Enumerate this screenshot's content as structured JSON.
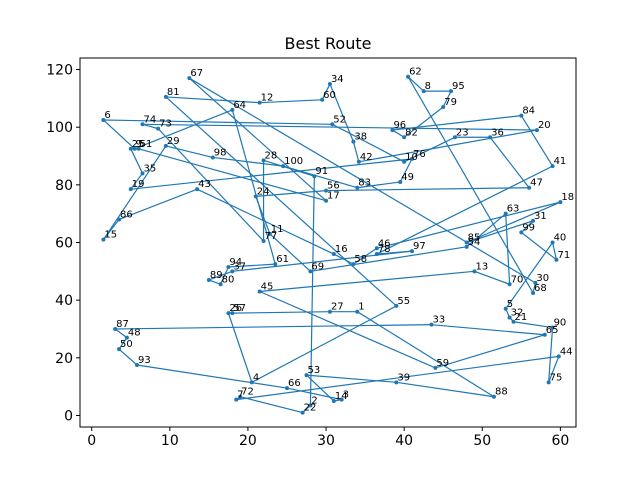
{
  "chart_data": {
    "type": "line",
    "title": "Best Route",
    "xlabel": "",
    "ylabel": "",
    "xlim": [
      -1.5,
      62
    ],
    "ylim": [
      -4,
      124
    ],
    "x_ticks": [
      0,
      10,
      20,
      30,
      40,
      50,
      60
    ],
    "y_ticks": [
      0,
      20,
      40,
      60,
      80,
      100,
      120
    ],
    "grid": false,
    "legend": "none",
    "colors": {
      "line": "#1f77b4"
    },
    "series": [
      {
        "points": [
          {
            "label": "6",
            "x": 1.5,
            "y": 102.5
          },
          {
            "label": "52",
            "x": 30.8,
            "y": 101
          },
          {
            "label": "10",
            "x": 40,
            "y": 88
          },
          {
            "label": "23",
            "x": 46.5,
            "y": 96.5
          },
          {
            "label": "36",
            "x": 51,
            "y": 96.5
          },
          {
            "label": "47",
            "x": 56,
            "y": 79
          },
          {
            "label": "56",
            "x": 30,
            "y": 78
          },
          {
            "label": "24",
            "x": 21,
            "y": 76
          },
          {
            "label": "11",
            "x": 22.8,
            "y": 63
          },
          {
            "label": "69",
            "x": 28,
            "y": 50
          },
          {
            "label": "54",
            "x": 48,
            "y": 58.5
          },
          {
            "label": "63",
            "x": 53,
            "y": 70
          },
          {
            "label": "70",
            "x": 53.5,
            "y": 45.5
          },
          {
            "label": "13",
            "x": 49,
            "y": 50
          },
          {
            "label": "45",
            "x": 21.5,
            "y": 43
          },
          {
            "label": "59",
            "x": 44,
            "y": 16.5
          },
          {
            "label": "65",
            "x": 58,
            "y": 28
          },
          {
            "label": "33",
            "x": 43.5,
            "y": 31.5
          },
          {
            "label": "87",
            "x": 3,
            "y": 30
          },
          {
            "label": "48",
            "x": 4.5,
            "y": 27
          },
          {
            "label": "50",
            "x": 3.5,
            "y": 23
          },
          {
            "label": "93",
            "x": 5.8,
            "y": 17.5
          },
          {
            "label": "66",
            "x": 25,
            "y": 9.5
          },
          {
            "label": "3",
            "x": 32,
            "y": 5.5
          },
          {
            "label": "14",
            "x": 31,
            "y": 5
          },
          {
            "label": "53",
            "x": 27.5,
            "y": 14
          },
          {
            "label": "39",
            "x": 39,
            "y": 11.5
          },
          {
            "label": "88",
            "x": 51.5,
            "y": 6.5
          },
          {
            "label": "1",
            "x": 34,
            "y": 36
          },
          {
            "label": "27",
            "x": 30.5,
            "y": 36
          },
          {
            "label": "57",
            "x": 18,
            "y": 35.5
          },
          {
            "label": "26",
            "x": 17.5,
            "y": 35.5
          },
          {
            "label": "4",
            "x": 20.5,
            "y": 11.5
          },
          {
            "label": "55",
            "x": 39,
            "y": 38
          },
          {
            "label": "81",
            "x": 9.5,
            "y": 110.5
          },
          {
            "label": "12",
            "x": 21.5,
            "y": 108.5
          },
          {
            "label": "60",
            "x": 29.5,
            "y": 109.5
          },
          {
            "label": "34",
            "x": 30.5,
            "y": 115
          },
          {
            "label": "38",
            "x": 33.5,
            "y": 95
          },
          {
            "label": "42",
            "x": 34.2,
            "y": 88
          },
          {
            "label": "20",
            "x": 57,
            "y": 99
          },
          {
            "label": "74",
            "x": 6.5,
            "y": 101
          },
          {
            "label": "73",
            "x": 8.5,
            "y": 99.5
          },
          {
            "label": "77",
            "x": 22,
            "y": 60.5
          },
          {
            "label": "28",
            "x": 22,
            "y": 88.5
          },
          {
            "label": "91",
            "x": 28.5,
            "y": 83
          },
          {
            "label": "2",
            "x": 28,
            "y": 3.5
          },
          {
            "label": "22",
            "x": 27,
            "y": 1
          },
          {
            "label": "72",
            "x": 19,
            "y": 6.5
          },
          {
            "label": "7",
            "x": 18.5,
            "y": 5.5
          },
          {
            "label": "44",
            "x": 59.8,
            "y": 20.5
          },
          {
            "label": "75",
            "x": 58.5,
            "y": 11.5
          },
          {
            "label": "90",
            "x": 59,
            "y": 30.5
          },
          {
            "label": "21",
            "x": 54,
            "y": 32.5
          },
          {
            "label": "32",
            "x": 53.5,
            "y": 34
          },
          {
            "label": "5",
            "x": 53,
            "y": 37
          },
          {
            "label": "40",
            "x": 59,
            "y": 60
          },
          {
            "label": "71",
            "x": 59.5,
            "y": 54
          },
          {
            "label": "99",
            "x": 55,
            "y": 63.5
          },
          {
            "label": "31",
            "x": 56.5,
            "y": 67.5
          },
          {
            "label": "85",
            "x": 48,
            "y": 60
          },
          {
            "label": "18",
            "x": 60,
            "y": 74
          },
          {
            "label": "46",
            "x": 36.5,
            "y": 58
          },
          {
            "label": "58",
            "x": 33.5,
            "y": 52.5
          },
          {
            "label": "16",
            "x": 31,
            "y": 56
          },
          {
            "label": "43",
            "x": 13.5,
            "y": 78.5
          },
          {
            "label": "86",
            "x": 3.5,
            "y": 68
          },
          {
            "label": "15",
            "x": 1.5,
            "y": 61
          },
          {
            "label": "29",
            "x": 9.5,
            "y": 93.5
          },
          {
            "label": "98",
            "x": 15.5,
            "y": 89.5
          },
          {
            "label": "100",
            "x": 24.5,
            "y": 86.5
          },
          {
            "label": "83",
            "x": 34,
            "y": 79
          },
          {
            "label": "49",
            "x": 39.5,
            "y": 81
          },
          {
            "label": "76",
            "x": 41,
            "y": 89
          },
          {
            "label": "19",
            "x": 5,
            "y": 78.5
          },
          {
            "label": "35",
            "x": 6.5,
            "y": 84
          },
          {
            "label": "25",
            "x": 5,
            "y": 92.5
          },
          {
            "label": "51",
            "x": 6,
            "y": 92.5
          },
          {
            "label": "17",
            "x": 30,
            "y": 74.5
          },
          {
            "label": "67",
            "x": 12.5,
            "y": 117
          },
          {
            "label": "30",
            "x": 56.8,
            "y": 46
          },
          {
            "label": "68",
            "x": 56.5,
            "y": 42.5
          },
          {
            "label": "62",
            "x": 40.5,
            "y": 117.5
          },
          {
            "label": "8",
            "x": 42.5,
            "y": 112.5
          },
          {
            "label": "95",
            "x": 46,
            "y": 112.5
          },
          {
            "label": "79",
            "x": 45,
            "y": 107
          },
          {
            "label": "82",
            "x": 40,
            "y": 96.5
          },
          {
            "label": "96",
            "x": 38.5,
            "y": 99
          },
          {
            "label": "84",
            "x": 55,
            "y": 104
          },
          {
            "label": "41",
            "x": 59,
            "y": 86.5
          },
          {
            "label": "78",
            "x": 36.5,
            "y": 56
          },
          {
            "label": "97",
            "x": 41,
            "y": 57
          },
          {
            "label": "37",
            "x": 18,
            "y": 50
          },
          {
            "label": "89",
            "x": 15,
            "y": 47
          },
          {
            "label": "80",
            "x": 16.5,
            "y": 45.5
          },
          {
            "label": "94",
            "x": 17.5,
            "y": 51.5
          },
          {
            "label": "61",
            "x": 23.5,
            "y": 52.5
          },
          {
            "label": "64",
            "x": 18,
            "y": 106
          },
          {
            "label": "9",
            "x": 5.5,
            "y": 92.5
          }
        ]
      }
    ]
  }
}
